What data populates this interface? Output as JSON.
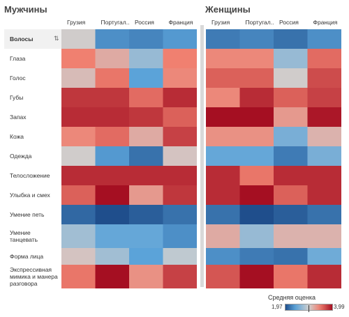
{
  "chart_data": {
    "type": "heatmap",
    "panels": [
      {
        "title": "Мужчины",
        "columns": [
          "Грузия",
          "Португал..",
          "Россия",
          "Франция"
        ],
        "values": [
          [
            3.0,
            2.3,
            2.25,
            2.35
          ],
          [
            3.45,
            3.2,
            2.7,
            3.45
          ],
          [
            3.1,
            3.5,
            2.4,
            3.4
          ],
          [
            3.8,
            3.8,
            3.55,
            3.85
          ],
          [
            3.85,
            3.85,
            3.8,
            3.6
          ],
          [
            3.4,
            3.55,
            3.2,
            3.75
          ],
          [
            3.0,
            2.35,
            2.15,
            3.05
          ],
          [
            3.85,
            3.85,
            3.85,
            3.85
          ],
          [
            3.6,
            3.99,
            3.3,
            3.8
          ],
          [
            2.1,
            1.97,
            2.05,
            2.15
          ],
          [
            2.75,
            2.45,
            2.45,
            2.3
          ],
          [
            3.05,
            2.75,
            2.4,
            2.9
          ],
          [
            3.5,
            3.99,
            3.35,
            3.75
          ]
        ]
      },
      {
        "title": "Женщины",
        "columns": [
          "Грузия",
          "Португал..",
          "Россия",
          "Франция"
        ],
        "values": [
          [
            2.2,
            2.25,
            2.15,
            2.3
          ],
          [
            3.4,
            3.4,
            2.7,
            3.55
          ],
          [
            3.6,
            3.6,
            3.0,
            3.7
          ],
          [
            3.4,
            3.85,
            3.6,
            3.75
          ],
          [
            3.99,
            3.99,
            3.3,
            3.95
          ],
          [
            3.35,
            3.35,
            2.55,
            3.15
          ],
          [
            2.45,
            2.45,
            2.2,
            2.55
          ],
          [
            3.85,
            3.5,
            3.85,
            3.85
          ],
          [
            3.85,
            3.99,
            3.6,
            3.85
          ],
          [
            2.15,
            1.97,
            2.05,
            2.15
          ],
          [
            3.2,
            2.7,
            3.15,
            3.15
          ],
          [
            2.3,
            2.2,
            2.15,
            2.5
          ],
          [
            3.65,
            3.99,
            3.5,
            3.85
          ]
        ]
      }
    ],
    "rows": [
      "Волосы",
      "Глаза",
      "Голос",
      "Губы",
      "Запах",
      "Кожа",
      "Одежда",
      "Телосложение",
      "Улыбка и смех",
      "Умение петь",
      "Умение танцевать",
      "Форма лица",
      "Экспрессивная мимика и манера разговора"
    ],
    "legend": {
      "title": "Средняя оценка",
      "min_label": "1,97",
      "max_label": "3,99",
      "min": 1.97,
      "max": 3.99,
      "mid": 2.98
    },
    "colors": {
      "low": "#1f4e8c",
      "low_mid": "#5ba3d9",
      "neutral": "#cfcfcf",
      "high_mid": "#f08070",
      "high": "#a50f22"
    }
  }
}
